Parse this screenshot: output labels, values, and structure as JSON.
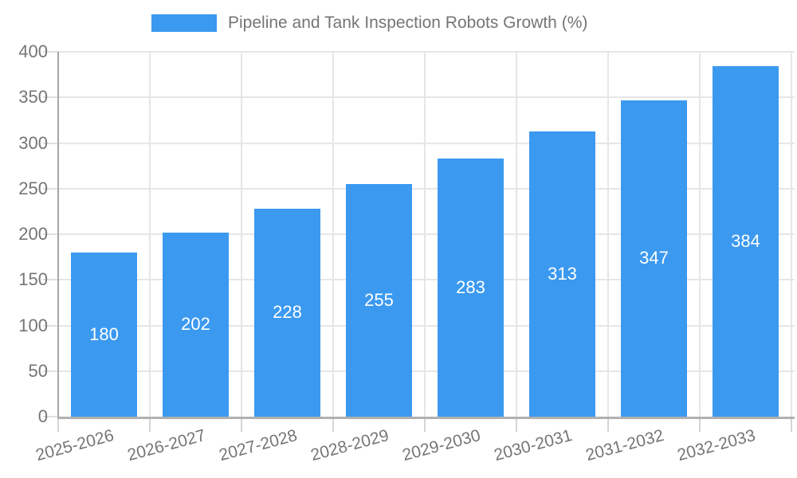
{
  "legend": {
    "label": "Pipeline and Tank Inspection Robots Growth (%)",
    "swatch_color": "#3B99F0"
  },
  "chart_data": {
    "type": "bar",
    "title": "Pipeline and Tank Inspection Robots Growth (%)",
    "categories": [
      "2025-2026",
      "2026-2027",
      "2027-2028",
      "2028-2029",
      "2029-2030",
      "2030-2031",
      "2031-2032",
      "2032-2033"
    ],
    "values": [
      180,
      202,
      228,
      255,
      283,
      313,
      347,
      384
    ],
    "xlabel": "",
    "ylabel": "",
    "ylim": [
      0,
      400
    ],
    "yticks": [
      0,
      50,
      100,
      150,
      200,
      250,
      300,
      350,
      400
    ],
    "grid": true,
    "legend_position": "top-center",
    "bar_color": "#3B99F0",
    "value_label_color": "#FFFFFF",
    "axis_text_color": "#757575"
  }
}
